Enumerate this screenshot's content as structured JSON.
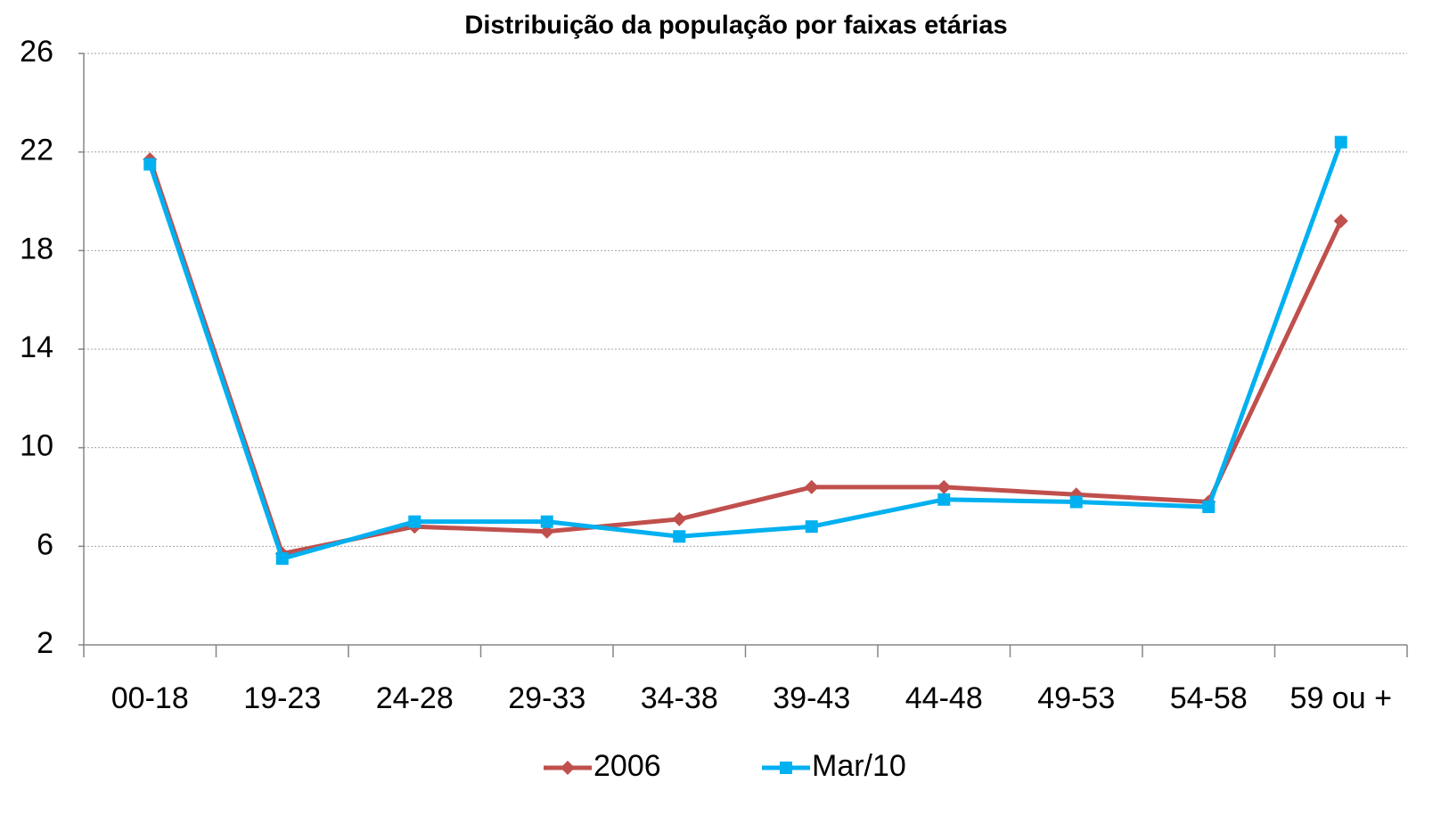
{
  "chart_data": {
    "type": "line",
    "title": "Distribuição da população por faixas etárias",
    "categories": [
      "00-18",
      "19-23",
      "24-28",
      "29-33",
      "34-38",
      "39-43",
      "44-48",
      "49-53",
      "54-58",
      "59 ou +"
    ],
    "series": [
      {
        "name": "2006",
        "color": "#c0504d",
        "marker": "diamond",
        "values": [
          21.7,
          5.7,
          6.8,
          6.6,
          7.1,
          8.4,
          8.4,
          8.1,
          7.8,
          19.2
        ]
      },
      {
        "name": "Mar/10",
        "color": "#00b0f0",
        "marker": "square",
        "values": [
          21.5,
          5.5,
          7.0,
          7.0,
          6.4,
          6.8,
          7.9,
          7.8,
          7.6,
          22.4
        ]
      }
    ],
    "ylim": [
      2,
      26
    ],
    "yticks": [
      2,
      6,
      10,
      14,
      18,
      22,
      26
    ],
    "grid": true,
    "legend": "bottom"
  }
}
